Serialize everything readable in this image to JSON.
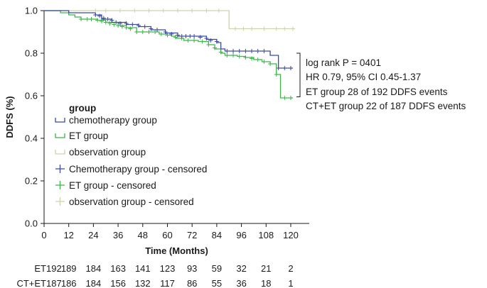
{
  "chart_data": {
    "type": "line",
    "subtype": "kaplan-meier",
    "title": "",
    "xlabel": "Time (Months)",
    "ylabel": "DDFS (%)",
    "xlim": [
      0,
      129
    ],
    "ylim": [
      0.0,
      1.0
    ],
    "x_ticks": [
      "0",
      "12",
      "24",
      "36",
      "48",
      "60",
      "72",
      "84",
      "96",
      "108",
      "120"
    ],
    "y_ticks": [
      "0.0",
      "0.2",
      "0.4",
      "0.6",
      "0.8",
      "1.0"
    ],
    "grid": false,
    "legend": {
      "title": "group",
      "position": "center-left",
      "entries": [
        {
          "label": "chemotherapy group",
          "color": "#3b4aa0",
          "marker": "step"
        },
        {
          "label": "ET group",
          "color": "#3db34a",
          "marker": "step"
        },
        {
          "label": "observation group",
          "color": "#cdd3ae",
          "marker": "step"
        },
        {
          "label": "Chemotherapy group - censored",
          "color": "#3b4aa0",
          "marker": "plus"
        },
        {
          "label": "ET group - censored",
          "color": "#3db34a",
          "marker": "plus"
        },
        {
          "label": "observation group - censored",
          "color": "#cdd3ae",
          "marker": "plus"
        }
      ]
    },
    "series": [
      {
        "name": "chemotherapy group",
        "color": "#3b4aa0",
        "steps": [
          [
            0,
            1.0
          ],
          [
            12,
            0.99
          ],
          [
            25,
            0.98
          ],
          [
            28,
            0.96
          ],
          [
            33,
            0.945
          ],
          [
            40,
            0.935
          ],
          [
            46,
            0.925
          ],
          [
            52,
            0.91
          ],
          [
            59,
            0.895
          ],
          [
            65,
            0.88
          ],
          [
            79,
            0.865
          ],
          [
            84,
            0.85
          ],
          [
            86,
            0.82
          ],
          [
            88,
            0.81
          ],
          [
            108,
            0.81
          ],
          [
            110,
            0.79
          ],
          [
            114,
            0.73
          ],
          [
            121,
            0.73
          ]
        ],
        "censored": [
          [
            25,
            0.98
          ],
          [
            27,
            0.975
          ],
          [
            29,
            0.965
          ],
          [
            31,
            0.96
          ],
          [
            33,
            0.955
          ],
          [
            35,
            0.945
          ],
          [
            37,
            0.94
          ],
          [
            40,
            0.94
          ],
          [
            43,
            0.935
          ],
          [
            46,
            0.93
          ],
          [
            49,
            0.925
          ],
          [
            52,
            0.915
          ],
          [
            55,
            0.91
          ],
          [
            59,
            0.9
          ],
          [
            62,
            0.89
          ],
          [
            65,
            0.885
          ],
          [
            67,
            0.88
          ],
          [
            69,
            0.88
          ],
          [
            71,
            0.88
          ],
          [
            73,
            0.88
          ],
          [
            76,
            0.875
          ],
          [
            79,
            0.87
          ],
          [
            81,
            0.86
          ],
          [
            84,
            0.855
          ],
          [
            89,
            0.81
          ],
          [
            92,
            0.81
          ],
          [
            95,
            0.81
          ],
          [
            98,
            0.81
          ],
          [
            101,
            0.81
          ],
          [
            104,
            0.81
          ],
          [
            107,
            0.81
          ],
          [
            114,
            0.73
          ],
          [
            117,
            0.73
          ],
          [
            120,
            0.73
          ]
        ]
      },
      {
        "name": "ET group",
        "color": "#3db34a",
        "steps": [
          [
            0,
            1.0
          ],
          [
            8,
            0.99
          ],
          [
            12,
            0.98
          ],
          [
            15,
            0.97
          ],
          [
            18,
            0.96
          ],
          [
            26,
            0.955
          ],
          [
            30,
            0.945
          ],
          [
            36,
            0.93
          ],
          [
            40,
            0.92
          ],
          [
            45,
            0.9
          ],
          [
            56,
            0.89
          ],
          [
            60,
            0.885
          ],
          [
            62,
            0.88
          ],
          [
            64,
            0.87
          ],
          [
            68,
            0.86
          ],
          [
            75,
            0.855
          ],
          [
            80,
            0.84
          ],
          [
            83,
            0.82
          ],
          [
            86,
            0.8
          ],
          [
            88,
            0.79
          ],
          [
            94,
            0.785
          ],
          [
            98,
            0.78
          ],
          [
            102,
            0.77
          ],
          [
            106,
            0.76
          ],
          [
            110,
            0.75
          ],
          [
            113,
            0.7
          ],
          [
            115,
            0.59
          ],
          [
            121,
            0.59
          ]
        ],
        "censored": [
          [
            18,
            0.96
          ],
          [
            21,
            0.96
          ],
          [
            23,
            0.96
          ],
          [
            26,
            0.955
          ],
          [
            28,
            0.95
          ],
          [
            30,
            0.945
          ],
          [
            32,
            0.94
          ],
          [
            34,
            0.935
          ],
          [
            36,
            0.93
          ],
          [
            38,
            0.925
          ],
          [
            40,
            0.92
          ],
          [
            42,
            0.915
          ],
          [
            45,
            0.9
          ],
          [
            48,
            0.9
          ],
          [
            51,
            0.9
          ],
          [
            54,
            0.9
          ],
          [
            57,
            0.89
          ],
          [
            60,
            0.885
          ],
          [
            64,
            0.875
          ],
          [
            67,
            0.87
          ],
          [
            70,
            0.86
          ],
          [
            73,
            0.86
          ],
          [
            77,
            0.855
          ],
          [
            80,
            0.84
          ],
          [
            83,
            0.825
          ],
          [
            86,
            0.805
          ],
          [
            89,
            0.79
          ],
          [
            92,
            0.79
          ],
          [
            95,
            0.785
          ],
          [
            98,
            0.78
          ],
          [
            101,
            0.775
          ],
          [
            104,
            0.77
          ],
          [
            107,
            0.76
          ],
          [
            110,
            0.75
          ],
          [
            113,
            0.7
          ],
          [
            117,
            0.59
          ],
          [
            120,
            0.59
          ]
        ]
      },
      {
        "name": "observation group",
        "color": "#cdd3ae",
        "steps": [
          [
            0,
            1.0
          ],
          [
            89,
            1.0
          ],
          [
            90,
            0.915
          ],
          [
            122,
            0.915
          ]
        ],
        "censored": [
          [
            25,
            1.0
          ],
          [
            30,
            1.0
          ],
          [
            37,
            1.0
          ],
          [
            44,
            1.0
          ],
          [
            51,
            1.0
          ],
          [
            58,
            1.0
          ],
          [
            65,
            1.0
          ],
          [
            72,
            1.0
          ],
          [
            79,
            1.0
          ],
          [
            85,
            1.0
          ],
          [
            93,
            0.915
          ],
          [
            97,
            0.915
          ],
          [
            101,
            0.915
          ],
          [
            107,
            0.915
          ],
          [
            113,
            0.915
          ],
          [
            117,
            0.915
          ],
          [
            121,
            0.915
          ]
        ]
      }
    ],
    "annotations": [
      "log rank P = 0401",
      "HR 0.79, 95% CI 0.45-1.37",
      "ET group 28 of 192 DDFS events",
      "CT+ET group 22 of 187 DDFS events"
    ],
    "risk_table": [
      {
        "label": "ET",
        "values": [
          "192",
          "189",
          "184",
          "163",
          "141",
          "123",
          "93",
          "59",
          "32",
          "21",
          "2"
        ]
      },
      {
        "label": "CT+ET",
        "values": [
          "187",
          "186",
          "184",
          "156",
          "132",
          "117",
          "86",
          "55",
          "36",
          "18",
          "1"
        ]
      }
    ]
  }
}
